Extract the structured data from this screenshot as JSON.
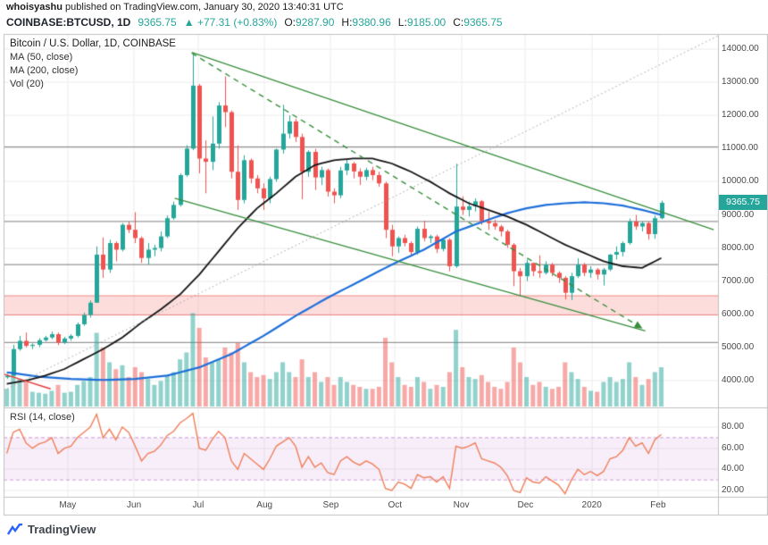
{
  "attribution": {
    "author": "whoisyashu",
    "text": " published on TradingView.com, January 30, 2020 13:40:31 UTC"
  },
  "ticker_bar": {
    "symbol": "COINBASE:BTCUSD, 1D",
    "price": "9365.75",
    "change": "▲ +77.31 (+0.83%)",
    "o_label": "O:",
    "o": "9287.90",
    "h_label": "H:",
    "h": "9380.96",
    "l_label": "L:",
    "l": "9185.00",
    "c_label": "C:",
    "c": "9365.75"
  },
  "legend": {
    "title": "Bitcoin / U.S. Dollar, 1D, COINBASE",
    "ma50": "MA (50, close)",
    "ma200": "MA (200, close)",
    "vol": "Vol (20)"
  },
  "rsi_label": "RSI (14, close)",
  "price_badge": "9365.75",
  "footer": {
    "brand": "TradingView"
  },
  "colors": {
    "up": "#26a69a",
    "navy": "#1e222d",
    "badge": "#26a69a",
    "axis-text": "#4a4a4a",
    "brand-blue": "#2962ff"
  },
  "chart_data": {
    "type": "candlestick",
    "title": "Bitcoin / U.S. Dollar, 1D, COINBASE",
    "start_date": "2019-04-01",
    "candle_interval_days": 3,
    "total_days": 334,
    "price_axis_range": [
      3550,
      14460
    ],
    "rsi_axis_range": [
      14,
      97
    ],
    "legend_position": "top-left",
    "grid": true,
    "price_ticks": [
      [
        14000,
        "14000.00"
      ],
      [
        13000,
        "13000.00"
      ],
      [
        12000,
        "12000.00"
      ],
      [
        11000,
        "11000.00"
      ],
      [
        10000,
        "10000.00"
      ],
      [
        9000,
        "9000.00"
      ],
      [
        8000,
        "8000.00"
      ],
      [
        7000,
        "7000.00"
      ],
      [
        6000,
        "6000.00"
      ],
      [
        5000,
        "5000.00"
      ],
      [
        4000,
        "4000.00"
      ]
    ],
    "rsi_ticks": [
      [
        80,
        "80.00"
      ],
      [
        60,
        "60.00"
      ],
      [
        40,
        "40.00"
      ],
      [
        20,
        "20.00"
      ]
    ],
    "months": [
      [
        30,
        "May"
      ],
      [
        61,
        "Jun"
      ],
      [
        91,
        "Jul"
      ],
      [
        122,
        "Aug"
      ],
      [
        153,
        "Sep"
      ],
      [
        183,
        "Oct"
      ],
      [
        214,
        "Nov"
      ],
      [
        244,
        "Dec"
      ],
      [
        275,
        "2020"
      ],
      [
        306,
        "Feb"
      ]
    ],
    "last_price": 9365.75,
    "candles": [
      [
        4100,
        4200,
        4050,
        4150
      ],
      [
        4150,
        5080,
        4140,
        4950
      ],
      [
        4950,
        5350,
        4900,
        5200
      ],
      [
        5200,
        5450,
        5000,
        5050
      ],
      [
        5050,
        5120,
        4950,
        5080
      ],
      [
        5080,
        5280,
        5010,
        5220
      ],
      [
        5220,
        5350,
        5180,
        5300
      ],
      [
        5300,
        5480,
        5250,
        5400
      ],
      [
        5400,
        5450,
        5070,
        5150
      ],
      [
        5150,
        5320,
        5100,
        5270
      ],
      [
        5270,
        5400,
        5200,
        5350
      ],
      [
        5350,
        5750,
        5300,
        5700
      ],
      [
        5700,
        6050,
        5650,
        5980
      ],
      [
        5980,
        6420,
        5900,
        6350
      ],
      [
        6350,
        8050,
        6350,
        7800
      ],
      [
        7800,
        8320,
        7100,
        7350
      ],
      [
        7350,
        8250,
        7250,
        8150
      ],
      [
        8150,
        8200,
        7600,
        7950
      ],
      [
        7950,
        8750,
        7900,
        8700
      ],
      [
        8700,
        8800,
        8450,
        8550
      ],
      [
        8550,
        9080,
        8150,
        8300
      ],
      [
        8300,
        8350,
        7550,
        7700
      ],
      [
        7700,
        8150,
        7500,
        7950
      ],
      [
        7950,
        8100,
        7750,
        8000
      ],
      [
        8000,
        8500,
        7900,
        8350
      ],
      [
        8350,
        8980,
        8300,
        8900
      ],
      [
        8900,
        9400,
        8850,
        9300
      ],
      [
        9300,
        10250,
        9250,
        10200
      ],
      [
        10200,
        11100,
        10150,
        11000
      ],
      [
        11000,
        13880,
        10950,
        12900
      ],
      [
        12900,
        12950,
        10250,
        10700
      ],
      [
        10700,
        11250,
        9650,
        10600
      ],
      [
        10600,
        11970,
        10350,
        11150
      ],
      [
        11150,
        12400,
        11000,
        12300
      ],
      [
        12300,
        13180,
        11650,
        12100
      ],
      [
        12100,
        12150,
        10100,
        10300
      ],
      [
        10300,
        11100,
        9150,
        9450
      ],
      [
        9450,
        10800,
        9350,
        10650
      ],
      [
        10650,
        10700,
        9950,
        10100
      ],
      [
        10100,
        10200,
        9650,
        9800
      ],
      [
        9800,
        9950,
        9150,
        9500
      ],
      [
        9500,
        10150,
        9350,
        10080
      ],
      [
        10080,
        11000,
        10000,
        10970
      ],
      [
        10970,
        12320,
        10850,
        11450
      ],
      [
        11450,
        12000,
        11300,
        11820
      ],
      [
        11820,
        11900,
        11200,
        11350
      ],
      [
        11350,
        11450,
        9470,
        10300
      ],
      [
        10300,
        10950,
        10150,
        10900
      ],
      [
        10900,
        10990,
        9750,
        10130
      ],
      [
        10130,
        10450,
        9900,
        10350
      ],
      [
        10350,
        10400,
        9550,
        9700
      ],
      [
        9700,
        9800,
        9350,
        9590
      ],
      [
        9590,
        10450,
        9500,
        10340
      ],
      [
        10340,
        10680,
        10200,
        10550
      ],
      [
        10550,
        10600,
        10100,
        10310
      ],
      [
        10310,
        10400,
        9900,
        10150
      ],
      [
        10150,
        10420,
        10050,
        10350
      ],
      [
        10350,
        10450,
        10050,
        10200
      ],
      [
        10200,
        10300,
        9850,
        9950
      ],
      [
        9950,
        10000,
        8300,
        8550
      ],
      [
        8550,
        8700,
        7750,
        8050
      ],
      [
        8050,
        8350,
        7850,
        8300
      ],
      [
        8300,
        8400,
        8050,
        8150
      ],
      [
        8150,
        8200,
        7750,
        7880
      ],
      [
        7880,
        8650,
        7800,
        8580
      ],
      [
        8580,
        8820,
        8200,
        8300
      ],
      [
        8300,
        8400,
        8150,
        8350
      ],
      [
        8350,
        8400,
        7850,
        7970
      ],
      [
        7970,
        8300,
        7900,
        8250
      ],
      [
        8250,
        8300,
        7300,
        7450
      ],
      [
        7450,
        10540,
        7400,
        9250
      ],
      [
        9250,
        9560,
        9000,
        9150
      ],
      [
        9150,
        9400,
        8950,
        9260
      ],
      [
        9260,
        9500,
        9100,
        9410
      ],
      [
        9410,
        9450,
        8700,
        8810
      ],
      [
        8810,
        9100,
        8550,
        8750
      ],
      [
        8750,
        8850,
        8550,
        8650
      ],
      [
        8650,
        8700,
        8350,
        8500
      ],
      [
        8500,
        8550,
        8000,
        8100
      ],
      [
        8100,
        8150,
        6850,
        7300
      ],
      [
        7300,
        7400,
        6550,
        7150
      ],
      [
        7150,
        7650,
        7000,
        7550
      ],
      [
        7550,
        7560,
        7150,
        7300
      ],
      [
        7300,
        7780,
        7100,
        7250
      ],
      [
        7250,
        7600,
        7200,
        7500
      ],
      [
        7500,
        7550,
        7150,
        7250
      ],
      [
        7250,
        7300,
        6950,
        7100
      ],
      [
        7100,
        7150,
        6450,
        6650
      ],
      [
        6650,
        7250,
        6430,
        7150
      ],
      [
        7150,
        7690,
        7100,
        7500
      ],
      [
        7500,
        7550,
        7150,
        7250
      ],
      [
        7250,
        7450,
        7100,
        7350
      ],
      [
        7350,
        7400,
        7050,
        7200
      ],
      [
        7200,
        7400,
        6870,
        7350
      ],
      [
        7350,
        7820,
        7300,
        7800
      ],
      [
        7800,
        8050,
        7650,
        7880
      ],
      [
        7880,
        8200,
        7750,
        8150
      ],
      [
        8150,
        8890,
        8100,
        8800
      ],
      [
        8800,
        9000,
        8550,
        8650
      ],
      [
        8650,
        8800,
        8500,
        8750
      ],
      [
        8750,
        8800,
        8250,
        8420
      ],
      [
        8420,
        8980,
        8280,
        8900
      ],
      [
        8900,
        9430,
        8870,
        9366
      ]
    ],
    "volume": [
      18,
      35,
      28,
      25,
      15,
      14,
      13,
      16,
      22,
      14,
      15,
      22,
      26,
      30,
      75,
      60,
      45,
      38,
      42,
      30,
      40,
      35,
      28,
      22,
      26,
      32,
      35,
      48,
      55,
      95,
      80,
      50,
      45,
      48,
      60,
      55,
      65,
      45,
      35,
      30,
      32,
      28,
      35,
      45,
      35,
      30,
      48,
      30,
      35,
      25,
      30,
      22,
      30,
      25,
      22,
      20,
      18,
      18,
      20,
      70,
      45,
      30,
      22,
      20,
      30,
      25,
      18,
      22,
      20,
      35,
      78,
      40,
      30,
      28,
      32,
      25,
      20,
      18,
      25,
      60,
      45,
      30,
      22,
      25,
      20,
      18,
      20,
      45,
      35,
      28,
      20,
      16,
      15,
      25,
      30,
      25,
      28,
      45,
      30,
      22,
      28,
      35,
      40
    ],
    "ma50": [
      3900,
      3933,
      3967,
      4000,
      4050,
      4100,
      4150,
      4217,
      4283,
      4350,
      4450,
      4550,
      4650,
      4750,
      4850,
      4950,
      5067,
      5183,
      5300,
      5450,
      5600,
      5750,
      5883,
      6017,
      6150,
      6300,
      6450,
      6600,
      6800,
      7000,
      7200,
      7433,
      7667,
      7900,
      8133,
      8367,
      8600,
      8800,
      9000,
      9200,
      9350,
      9500,
      9650,
      9817,
      9983,
      10150,
      10267,
      10383,
      10500,
      10550,
      10600,
      10650,
      10667,
      10683,
      10700,
      10700,
      10700,
      10700,
      10650,
      10600,
      10550,
      10467,
      10383,
      10300,
      10200,
      10100,
      10000,
      9883,
      9767,
      9650,
      9550,
      9450,
      9350,
      9283,
      9217,
      9150,
      9083,
      9017,
      8950,
      8867,
      8783,
      8700,
      8600,
      8500,
      8400,
      8300,
      8200,
      8100,
      8017,
      7933,
      7850,
      7767,
      7683,
      7600,
      7550,
      7500,
      7450,
      7433,
      7417,
      7400,
      7500,
      7600,
      7700
    ],
    "ma200": [
      4250,
      4224,
      4198,
      4172,
      4146,
      4120,
      4106,
      4092,
      4078,
      4064,
      4050,
      4044,
      4038,
      4032,
      4026,
      4020,
      4026,
      4032,
      4038,
      4044,
      4050,
      4070,
      4090,
      4110,
      4130,
      4150,
      4200,
      4250,
      4300,
      4350,
      4400,
      4480,
      4560,
      4640,
      4720,
      4800,
      4910,
      5020,
      5130,
      5240,
      5350,
      5470,
      5590,
      5710,
      5830,
      5950,
      6060,
      6170,
      6280,
      6390,
      6500,
      6600,
      6700,
      6800,
      6900,
      7000,
      7100,
      7200,
      7300,
      7400,
      7500,
      7590,
      7680,
      7770,
      7860,
      7950,
      8060,
      8170,
      8280,
      8390,
      8500,
      8570,
      8640,
      8710,
      8780,
      8850,
      8917,
      8983,
      9050,
      9100,
      9150,
      9200,
      9233,
      9267,
      9300,
      9317,
      9333,
      9350,
      9360,
      9370,
      9380,
      9370,
      9360,
      9350,
      9327,
      9303,
      9280,
      9237,
      9193,
      9150,
      9100,
      9050,
      9000
    ],
    "rsi": [
      55,
      75,
      78,
      65,
      60,
      64,
      66,
      70,
      55,
      60,
      62,
      70,
      75,
      80,
      92,
      70,
      78,
      68,
      80,
      75,
      62,
      48,
      55,
      57,
      63,
      72,
      76,
      84,
      88,
      93,
      60,
      58,
      68,
      76,
      70,
      48,
      40,
      55,
      50,
      45,
      40,
      50,
      62,
      66,
      70,
      62,
      42,
      52,
      42,
      46,
      37,
      35,
      48,
      52,
      47,
      44,
      48,
      45,
      40,
      22,
      20,
      28,
      26,
      22,
      35,
      32,
      33,
      28,
      33,
      22,
      62,
      60,
      62,
      65,
      50,
      48,
      46,
      42,
      34,
      20,
      18,
      32,
      28,
      27,
      33,
      29,
      25,
      17,
      30,
      40,
      35,
      38,
      34,
      38,
      50,
      52,
      58,
      70,
      62,
      65,
      55,
      68,
      73
    ],
    "drawings": {
      "trendlines": [
        {
          "name": "upper-descending-channel-line",
          "style": "solid",
          "color": "#388e3c",
          "from": [
            88,
            13900
          ],
          "to": [
            332,
            8550
          ],
          "width": 1.4
        },
        {
          "name": "mid-descending-dashed-line",
          "style": "dashed",
          "color": "#388e3c",
          "from": [
            88,
            13880
          ],
          "to": [
            298,
            5600
          ],
          "width": 1.4,
          "arrow": true
        },
        {
          "name": "lower-descending-channel-line",
          "style": "solid",
          "color": "#388e3c",
          "from": [
            80,
            9500
          ],
          "to": [
            300,
            5500
          ],
          "width": 1.4
        },
        {
          "name": "long-ascending-dotted-line",
          "style": "dotted",
          "color": "#9e9e9e",
          "from": [
            0,
            3700
          ],
          "to": [
            334,
            14400
          ],
          "width": 1
        },
        {
          "name": "short-red-segment",
          "style": "solid",
          "color": "#e53935",
          "from": [
            0,
            4200
          ],
          "to": [
            22,
            3750
          ],
          "width": 1.4
        }
      ],
      "h_lines": [
        11050,
        8800,
        7500,
        5150
      ],
      "band": {
        "from": 5980,
        "to": 6560,
        "fill": "rgba(239,83,80,0.20)",
        "border": "rgba(229,57,53,0.55)"
      }
    },
    "colors": {
      "up": "#26a69a",
      "down": "#ef5350",
      "vol_up": "rgba(38,166,154,0.5)",
      "vol_down": "rgba(239,83,80,0.5)",
      "ma50": "#141414",
      "ma200": "#1e6fd9",
      "rsi_line": "#ef7f5a",
      "rsi_band_fill": "rgba(156,39,176,0.08)",
      "rsi_band_line": "rgba(156,39,176,0.45)",
      "grid": "#ececec",
      "frame": "#c0c0c0",
      "hline": "#6e6e6e",
      "axis_text": "#4a4a4a"
    }
  }
}
